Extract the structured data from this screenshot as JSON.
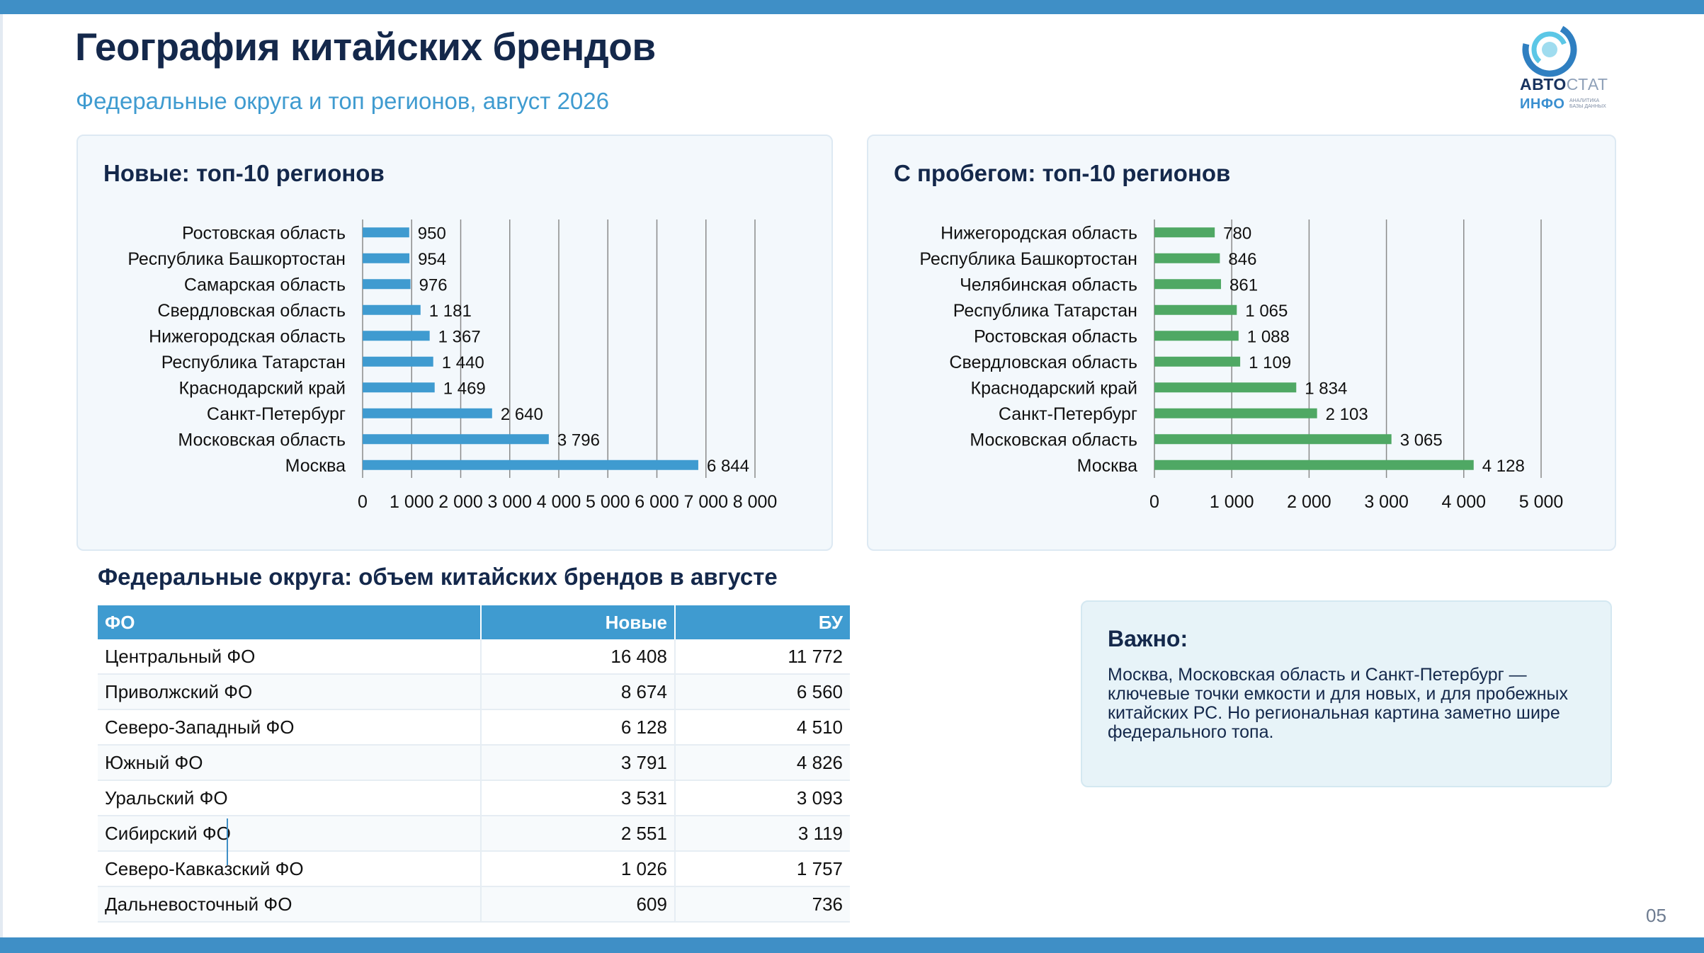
{
  "header": {
    "title": "География китайских брендов",
    "subtitle": "Федеральные округа и топ регионов, август 2026"
  },
  "logo": {
    "word1_bold": "АВТО",
    "word1_light": "СТАТ",
    "word2": "ИНФО",
    "tagline": "АНАЛИТИКА БАЗЫ ДАННЫХ"
  },
  "colors": {
    "accent_blue": "#3f9bd0",
    "bar_new": "#3f9bd0",
    "bar_used": "#4fa864",
    "title_navy": "#14284b"
  },
  "chart_data": [
    {
      "type": "bar",
      "orientation": "horizontal",
      "title": "Новые: топ-10 регионов",
      "categories": [
        "Ростовская область",
        "Республика Башкортостан",
        "Самарская область",
        "Свердловская область",
        "Нижегородская область",
        "Республика Татарстан",
        "Краснодарский край",
        "Санкт-Петербург",
        "Московская область",
        "Москва"
      ],
      "values": [
        950,
        954,
        976,
        1181,
        1367,
        1440,
        1469,
        2640,
        3796,
        6844
      ],
      "data_labels": [
        "950",
        "954",
        "976",
        "1 181",
        "1 367",
        "1 440",
        "1 469",
        "2 640",
        "3 796",
        "6 844"
      ],
      "xlim": [
        0,
        8000
      ],
      "xticks": [
        0,
        1000,
        2000,
        3000,
        4000,
        5000,
        6000,
        7000,
        8000
      ],
      "xtick_labels": [
        "0",
        "1 000",
        "2 000",
        "3 000",
        "4 000",
        "5 000",
        "6 000",
        "7 000",
        "8 000"
      ],
      "grid": "vertical",
      "color": "#3f9bd0"
    },
    {
      "type": "bar",
      "orientation": "horizontal",
      "title": "С пробегом: топ-10 регионов",
      "categories": [
        "Нижегородская область",
        "Республика Башкортостан",
        "Челябинская область",
        "Республика Татарстан",
        "Ростовская область",
        "Свердловская область",
        "Краснодарский край",
        "Санкт-Петербург",
        "Московская область",
        "Москва"
      ],
      "values": [
        780,
        846,
        861,
        1065,
        1088,
        1109,
        1834,
        2103,
        3065,
        4128
      ],
      "data_labels": [
        "780",
        "846",
        "861",
        "1 065",
        "1 088",
        "1 109",
        "1 834",
        "2 103",
        "3 065",
        "4 128"
      ],
      "xlim": [
        0,
        5000
      ],
      "xticks": [
        0,
        1000,
        2000,
        3000,
        4000,
        5000
      ],
      "xtick_labels": [
        "0",
        "1 000",
        "2 000",
        "3 000",
        "4 000",
        "5 000"
      ],
      "grid": "vertical",
      "color": "#4fa864"
    }
  ],
  "table": {
    "title": "Федеральные округа: объем китайских брендов в августе",
    "headers": [
      "ФО",
      "Новые",
      "БУ"
    ],
    "rows": [
      [
        "Центральный ФО",
        "16 408",
        "11 772"
      ],
      [
        "Приволжский ФО",
        "8 674",
        "6 560"
      ],
      [
        "Северо-Западный ФО",
        "6 128",
        "4 510"
      ],
      [
        "Южный ФО",
        "3 791",
        "4 826"
      ],
      [
        "Уральский ФО",
        "3 531",
        "3 093"
      ],
      [
        "Сибирский ФО",
        "2 551",
        "3 119"
      ],
      [
        "Северо-Кавказский ФО",
        "1 026",
        "1 757"
      ],
      [
        "Дальневосточный ФО",
        "609",
        "736"
      ]
    ]
  },
  "note": {
    "title": "Важно:",
    "text": "Москва, Московская область и Санкт-Петербург — ключевые точки емкости и для новых, и для пробежных китайских РС. Но региональная картина заметно шире федерального топа."
  },
  "footer": {
    "page_number": "05"
  }
}
